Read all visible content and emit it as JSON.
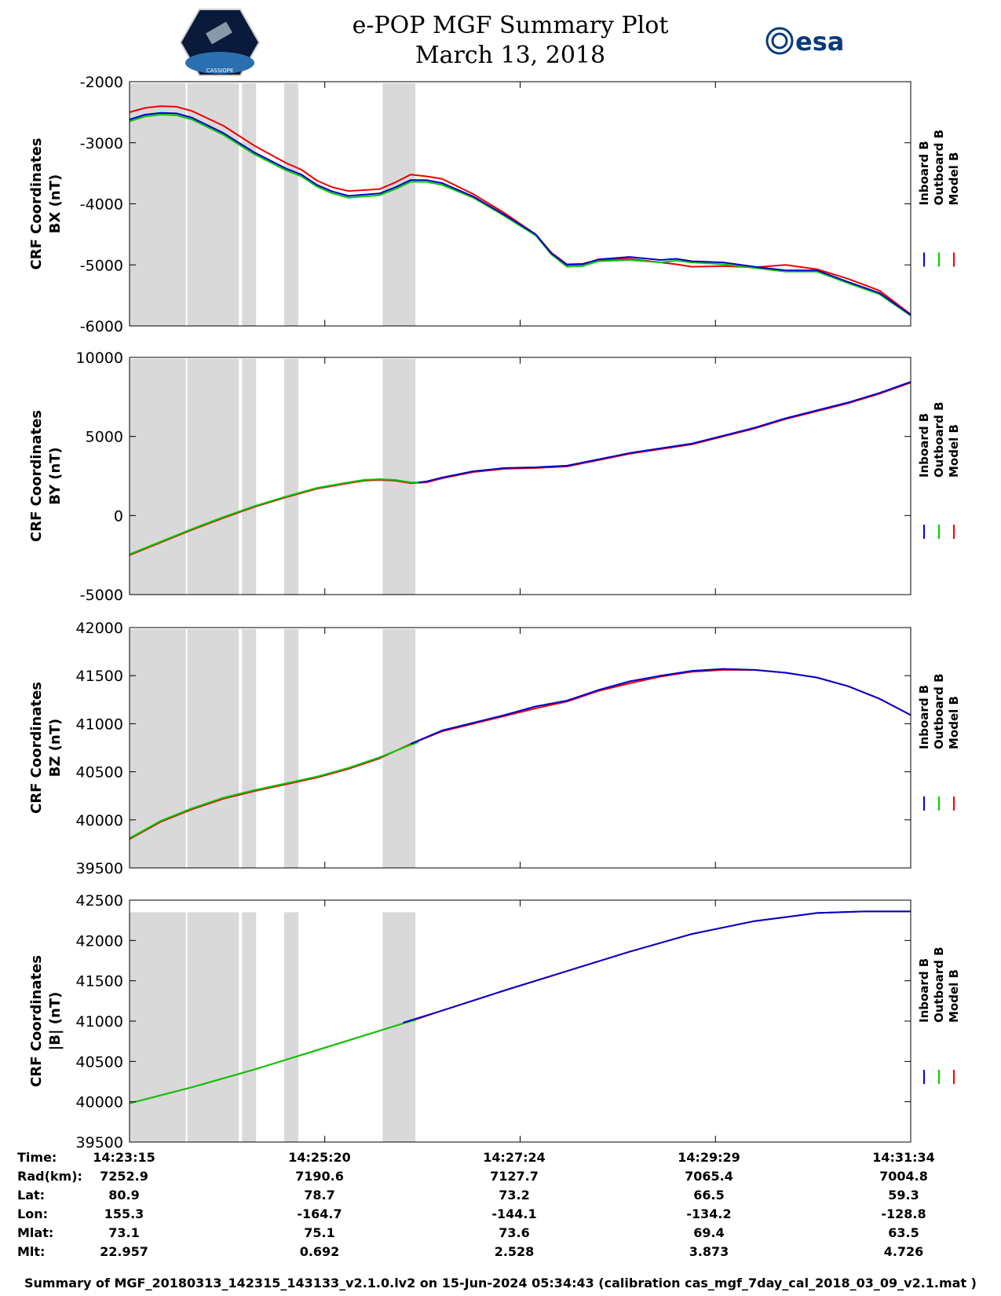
{
  "header": {
    "title_line1": "e-POP MGF Summary Plot",
    "title_line2": "March 13, 2018",
    "logo_left_text": "CASSIOPE",
    "logo_right_text": "esa"
  },
  "colors": {
    "inboard": "#0000cc",
    "outboard": "#00cc00",
    "model": "#ee0000",
    "gap_shading": "#d9d9d9"
  },
  "legend": [
    "Inboard B",
    "Outboard B",
    "Model B"
  ],
  "chart_data": [
    {
      "type": "line",
      "ylabel_line1": "CRF Coordinates",
      "ylabel_line2": "BX (nT)",
      "ylim": [
        -6000,
        -2000
      ],
      "yticks": [
        -6000,
        -5000,
        -4000,
        -3000,
        -2000
      ],
      "x_range_seconds": [
        0,
        500
      ],
      "shaded_intervals_seconds": [
        [
          0,
          36
        ],
        [
          37,
          70
        ],
        [
          72,
          81
        ],
        [
          99,
          108
        ],
        [
          162,
          183
        ]
      ],
      "series": [
        {
          "name": "Model B",
          "x": [
            0,
            10,
            20,
            30,
            40,
            60,
            80,
            100,
            110,
            120,
            130,
            140,
            160,
            170,
            180,
            190,
            200,
            220,
            240,
            260,
            270,
            280,
            290,
            300,
            320,
            340,
            350,
            360,
            380,
            400,
            420,
            440,
            460,
            480,
            500
          ],
          "y": [
            -2500,
            -2430,
            -2400,
            -2410,
            -2480,
            -2720,
            -3050,
            -3330,
            -3440,
            -3620,
            -3730,
            -3790,
            -3760,
            -3650,
            -3520,
            -3550,
            -3590,
            -3840,
            -4150,
            -4500,
            -4800,
            -4990,
            -4980,
            -4920,
            -4900,
            -4960,
            -4990,
            -5030,
            -5020,
            -5040,
            -5000,
            -5070,
            -5230,
            -5420,
            -5810
          ]
        },
        {
          "name": "Outboard B",
          "x": [
            0,
            10,
            20,
            30,
            40,
            60,
            80,
            100,
            110,
            120,
            130,
            140,
            160,
            170,
            180,
            190,
            200,
            220,
            240,
            260,
            270,
            280,
            290,
            300,
            320,
            340,
            350,
            360,
            380,
            400,
            420,
            440,
            460,
            480,
            500
          ],
          "y": [
            -2650,
            -2570,
            -2540,
            -2550,
            -2620,
            -2870,
            -3190,
            -3450,
            -3550,
            -3720,
            -3830,
            -3900,
            -3860,
            -3760,
            -3640,
            -3640,
            -3690,
            -3900,
            -4200,
            -4520,
            -4830,
            -5030,
            -5020,
            -4940,
            -4920,
            -4960,
            -4930,
            -4960,
            -4990,
            -5050,
            -5110,
            -5110,
            -5300,
            -5480,
            -5830
          ]
        },
        {
          "name": "Inboard B",
          "x": [
            0,
            10,
            20,
            30,
            40,
            60,
            80,
            100,
            110,
            120,
            130,
            140,
            160,
            170,
            180,
            190,
            200,
            220,
            240,
            260,
            270,
            280,
            290,
            300,
            320,
            340,
            350,
            360,
            380,
            400,
            420,
            440,
            460,
            480,
            500
          ],
          "y": [
            -2620,
            -2540,
            -2510,
            -2520,
            -2590,
            -2840,
            -3160,
            -3420,
            -3520,
            -3690,
            -3800,
            -3870,
            -3830,
            -3730,
            -3610,
            -3610,
            -3660,
            -3880,
            -4180,
            -4500,
            -4810,
            -5000,
            -4990,
            -4910,
            -4870,
            -4920,
            -4900,
            -4940,
            -4960,
            -5030,
            -5090,
            -5090,
            -5280,
            -5460,
            -5820
          ]
        }
      ]
    },
    {
      "type": "line",
      "ylabel_line1": "CRF Coordinates",
      "ylabel_line2": "BY (nT)",
      "ylim": [
        -5000,
        10000
      ],
      "yticks": [
        -5000,
        0,
        5000,
        10000
      ],
      "x_range_seconds": [
        0,
        500
      ],
      "shaded_intervals_seconds": [
        [
          0,
          36
        ],
        [
          37,
          70
        ],
        [
          72,
          81
        ],
        [
          99,
          108
        ],
        [
          162,
          183
        ]
      ],
      "series": [
        {
          "name": "Model B",
          "x": [
            0,
            20,
            40,
            60,
            80,
            100,
            120,
            140,
            150,
            160,
            170,
            180,
            190,
            200,
            220,
            240,
            260,
            280,
            300,
            320,
            340,
            360,
            380,
            400,
            420,
            440,
            460,
            480,
            500
          ],
          "y": [
            -2500,
            -1700,
            -900,
            -150,
            550,
            1150,
            1700,
            2050,
            2200,
            2250,
            2200,
            2050,
            2100,
            2350,
            2750,
            2950,
            3000,
            3100,
            3500,
            3900,
            4200,
            4500,
            5000,
            5500,
            6100,
            6600,
            7100,
            7700,
            8400
          ]
        },
        {
          "name": "Outboard B",
          "x": [
            0,
            20,
            40,
            60,
            80,
            100,
            120,
            140,
            150,
            160,
            170,
            180,
            185
          ],
          "y": [
            -2450,
            -1650,
            -850,
            -100,
            600,
            1200,
            1750,
            2100,
            2250,
            2300,
            2250,
            2100,
            2100
          ]
        },
        {
          "name": "Inboard B",
          "x": [
            185,
            190,
            200,
            220,
            240,
            260,
            280,
            300,
            320,
            340,
            360,
            380,
            400,
            420,
            440,
            460,
            480,
            500
          ],
          "y": [
            2100,
            2150,
            2400,
            2800,
            3000,
            3050,
            3150,
            3550,
            3950,
            4250,
            4550,
            5050,
            5550,
            6150,
            6650,
            7150,
            7750,
            8450
          ]
        }
      ]
    },
    {
      "type": "line",
      "ylabel_line1": "CRF Coordinates",
      "ylabel_line2": "BZ (nT)",
      "ylim": [
        39500,
        42000
      ],
      "yticks": [
        39500,
        40000,
        40500,
        41000,
        41500,
        42000
      ],
      "x_range_seconds": [
        0,
        500
      ],
      "shaded_intervals_seconds": [
        [
          0,
          36
        ],
        [
          37,
          70
        ],
        [
          72,
          81
        ],
        [
          99,
          108
        ],
        [
          162,
          183
        ]
      ],
      "series": [
        {
          "name": "Model B",
          "x": [
            0,
            20,
            40,
            60,
            80,
            100,
            120,
            140,
            160,
            180,
            200,
            220,
            240,
            260,
            280,
            300,
            320,
            340,
            360,
            380,
            400,
            420,
            440,
            460,
            480,
            500
          ],
          "y": [
            39800,
            39980,
            40110,
            40220,
            40300,
            40370,
            40440,
            40530,
            40640,
            40790,
            40920,
            41000,
            41080,
            41160,
            41230,
            41340,
            41420,
            41490,
            41540,
            41560,
            41560,
            41530,
            41480,
            41390,
            41260,
            41090
          ]
        },
        {
          "name": "Outboard B",
          "x": [
            0,
            20,
            40,
            60,
            80,
            100,
            120,
            140,
            160,
            180,
            185
          ],
          "y": [
            39810,
            39990,
            40120,
            40230,
            40310,
            40380,
            40450,
            40540,
            40650,
            40780,
            40810
          ]
        },
        {
          "name": "Inboard B",
          "x": [
            180,
            200,
            220,
            240,
            260,
            280,
            300,
            320,
            340,
            360,
            380,
            400,
            420,
            440,
            460,
            480,
            500
          ],
          "y": [
            40790,
            40930,
            41010,
            41090,
            41180,
            41240,
            41350,
            41440,
            41500,
            41550,
            41570,
            41560,
            41530,
            41480,
            41390,
            41260,
            41090
          ]
        }
      ]
    },
    {
      "type": "line",
      "ylabel_line1": "CRF Coordinates",
      "ylabel_line2": "|B| (nT)",
      "ylim": [
        39500,
        42500
      ],
      "yticks": [
        39500,
        40000,
        40500,
        41000,
        41500,
        42000,
        42500
      ],
      "x_range_seconds": [
        0,
        500
      ],
      "shaded_intervals_seconds": [
        [
          0,
          36
        ],
        [
          37,
          70
        ],
        [
          72,
          81
        ],
        [
          99,
          108
        ],
        [
          162,
          183
        ]
      ],
      "shading_top": 42350,
      "series": [
        {
          "name": "Model B",
          "x": [
            0,
            40,
            80,
            120,
            160,
            180,
            200,
            240,
            280,
            320,
            360,
            400,
            440,
            470,
            500
          ],
          "y": [
            39980,
            40180,
            40400,
            40640,
            40880,
            41000,
            41130,
            41380,
            41620,
            41860,
            42080,
            42240,
            42340,
            42360,
            42360
          ]
        },
        {
          "name": "Outboard B",
          "x": [
            0,
            40,
            80,
            120,
            160,
            180,
            183
          ],
          "y": [
            39980,
            40180,
            40400,
            40640,
            40880,
            41000,
            41010
          ]
        },
        {
          "name": "Inboard B",
          "x": [
            175,
            200,
            240,
            280,
            320,
            360,
            400,
            440,
            470,
            500
          ],
          "y": [
            40980,
            41130,
            41380,
            41620,
            41860,
            42080,
            42240,
            42340,
            42360,
            42360
          ]
        }
      ]
    }
  ],
  "info_table": {
    "labels": [
      "Time:",
      "Rad(km):",
      "Lat:",
      "Lon:",
      "Mlat:",
      "Mlt:"
    ],
    "columns": [
      [
        "14:23:15",
        "7252.9",
        "80.9",
        "155.3",
        "73.1",
        "22.957"
      ],
      [
        "14:25:20",
        "7190.6",
        "78.7",
        "-164.7",
        "75.1",
        "0.692"
      ],
      [
        "14:27:24",
        "7127.7",
        "73.2",
        "-144.1",
        "73.6",
        "2.528"
      ],
      [
        "14:29:29",
        "7065.4",
        "66.5",
        "-134.2",
        "69.4",
        "3.873"
      ],
      [
        "14:31:34",
        "7004.8",
        "59.3",
        "-128.8",
        "63.5",
        "4.726"
      ]
    ]
  },
  "footer": "Summary of MGF_20180313_142315_143133_v2.1.0.lv2 on 15-Jun-2024 05:34:43 (calibration cas_mgf_7day_cal_2018_03_09_v2.1.mat )"
}
